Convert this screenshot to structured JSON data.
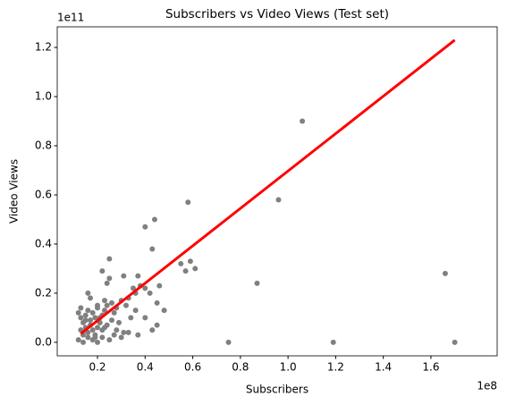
{
  "chart_data": {
    "type": "scatter",
    "title": "Subscribers vs Video Views (Test set)",
    "x_label": "Subscribers",
    "y_label": "Video Views",
    "x_offset_label": "1e8",
    "y_offset_label": "1e11",
    "xlim": [
      0.031,
      1.878
    ],
    "ylim": [
      -0.055,
      1.284
    ],
    "xticks": [
      0.2,
      0.4,
      0.6,
      0.8,
      {
        "value": 1.0,
        "label": "1.0"
      },
      1.2,
      1.4,
      1.6
    ],
    "yticks": [
      {
        "value": 0,
        "label": "0.0"
      },
      0.2,
      0.4,
      0.6,
      0.8,
      {
        "value": 1.0,
        "label": "1.0"
      },
      1.2
    ],
    "series": [
      {
        "kind": "scatter",
        "color": "#808080",
        "x": [
          1.06,
          0.96,
          0.58,
          0.44,
          0.4,
          0.43,
          0.25,
          0.59,
          0.55,
          0.61,
          0.57,
          0.22,
          0.87,
          1.66,
          0.75,
          1.19,
          1.7,
          0.46,
          0.38,
          0.36,
          0.31,
          0.37,
          0.35,
          0.4,
          0.42,
          0.33,
          0.48,
          0.45,
          0.4,
          0.36,
          0.34,
          0.45,
          0.43,
          0.37,
          0.31,
          0.28,
          0.25,
          0.24,
          0.23,
          0.2,
          0.16,
          0.13,
          0.12,
          0.13,
          0.14,
          0.15,
          0.16,
          0.17,
          0.18,
          0.19,
          0.2,
          0.21,
          0.22,
          0.23,
          0.24,
          0.26,
          0.27,
          0.28,
          0.3,
          0.32,
          0.13,
          0.14,
          0.15,
          0.16,
          0.17,
          0.18,
          0.19,
          0.2,
          0.21,
          0.22,
          0.24,
          0.26,
          0.29,
          0.12,
          0.14,
          0.16,
          0.18,
          0.2,
          0.22,
          0.25,
          0.27,
          0.3,
          0.33,
          0.15,
          0.17,
          0.19,
          0.21,
          0.23
        ],
        "values": [
          0.9,
          0.58,
          0.57,
          0.5,
          0.47,
          0.38,
          0.34,
          0.33,
          0.32,
          0.3,
          0.29,
          0.29,
          0.24,
          0.28,
          0.0,
          0.0,
          0.0,
          0.23,
          0.23,
          0.2,
          0.27,
          0.27,
          0.22,
          0.22,
          0.2,
          0.18,
          0.13,
          0.16,
          0.1,
          0.13,
          0.1,
          0.07,
          0.05,
          0.03,
          0.04,
          0.05,
          0.26,
          0.24,
          0.17,
          0.15,
          0.2,
          0.14,
          0.12,
          0.1,
          0.08,
          0.11,
          0.13,
          0.09,
          0.12,
          0.1,
          0.14,
          0.08,
          0.11,
          0.13,
          0.15,
          0.16,
          0.12,
          0.14,
          0.17,
          0.15,
          0.05,
          0.03,
          0.06,
          0.04,
          0.07,
          0.05,
          0.03,
          0.06,
          0.08,
          0.05,
          0.07,
          0.09,
          0.08,
          0.01,
          0.0,
          0.02,
          0.01,
          0.0,
          0.02,
          0.01,
          0.03,
          0.02,
          0.04,
          0.09,
          0.18,
          0.02,
          0.1,
          0.06
        ]
      },
      {
        "kind": "line",
        "color": "#ff0000",
        "x": [
          0.13,
          1.7
        ],
        "values": [
          0.035,
          1.23
        ]
      }
    ]
  }
}
